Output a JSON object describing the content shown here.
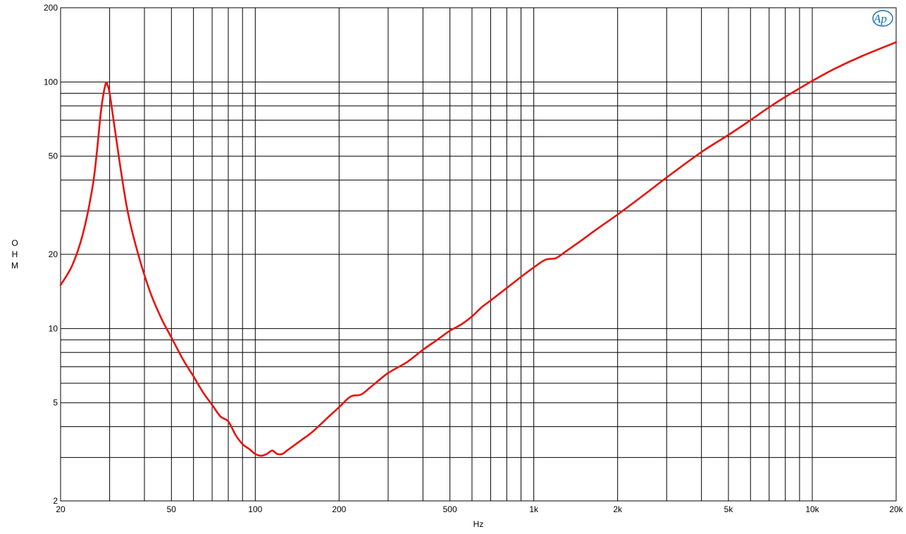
{
  "chart_data": {
    "type": "line",
    "xlabel": "Hz",
    "ylabel": "OHM",
    "xscale": "log",
    "yscale": "log",
    "xlim": [
      20,
      20000
    ],
    "ylim": [
      2,
      200
    ],
    "grid": true,
    "x_ticks": [
      {
        "value": 20,
        "label": "20"
      },
      {
        "value": 50,
        "label": "50"
      },
      {
        "value": 100,
        "label": "100"
      },
      {
        "value": 200,
        "label": "200"
      },
      {
        "value": 500,
        "label": "500"
      },
      {
        "value": 1000,
        "label": "1k"
      },
      {
        "value": 2000,
        "label": "2k"
      },
      {
        "value": 5000,
        "label": "5k"
      },
      {
        "value": 10000,
        "label": "10k"
      },
      {
        "value": 20000,
        "label": "20k"
      }
    ],
    "y_ticks": [
      {
        "value": 2,
        "label": "2"
      },
      {
        "value": 5,
        "label": "5"
      },
      {
        "value": 10,
        "label": "10"
      },
      {
        "value": 20,
        "label": "20"
      },
      {
        "value": 50,
        "label": "50"
      },
      {
        "value": 100,
        "label": "100"
      },
      {
        "value": 200,
        "label": "200"
      }
    ],
    "series": [
      {
        "color": "#e8120c",
        "x": [
          20,
          22,
          24,
          26,
          27,
          28,
          29,
          29.5,
          30,
          31,
          33,
          35,
          38,
          42,
          46,
          50,
          55,
          60,
          65,
          70,
          75,
          80,
          85,
          90,
          95,
          100,
          105,
          110,
          115,
          120,
          125,
          130,
          140,
          150,
          160,
          180,
          200,
          220,
          240,
          260,
          300,
          350,
          400,
          450,
          500,
          550,
          600,
          650,
          700,
          800,
          900,
          1000,
          1100,
          1200,
          1300,
          1500,
          1700,
          2000,
          2500,
          3000,
          4000,
          5000,
          6000,
          7000,
          8000,
          10000,
          12000,
          15000,
          20000
        ],
        "y": [
          15,
          18,
          24,
          37,
          52,
          78,
          98,
          97,
          90,
          70,
          43,
          29,
          20,
          14,
          11,
          9.2,
          7.5,
          6.4,
          5.5,
          4.9,
          4.4,
          4.2,
          3.7,
          3.4,
          3.25,
          3.1,
          3.05,
          3.1,
          3.2,
          3.1,
          3.1,
          3.2,
          3.4,
          3.6,
          3.8,
          4.3,
          4.8,
          5.3,
          5.4,
          5.8,
          6.6,
          7.3,
          8.2,
          9.0,
          9.8,
          10.4,
          11.2,
          12.2,
          13.0,
          14.6,
          16.2,
          17.7,
          19.0,
          19.3,
          20.5,
          23.0,
          25.5,
          29.0,
          35.0,
          41.0,
          52.0,
          61.0,
          70.0,
          79.0,
          87.0,
          101.0,
          113.0,
          127.0,
          145.0
        ]
      }
    ]
  }
}
